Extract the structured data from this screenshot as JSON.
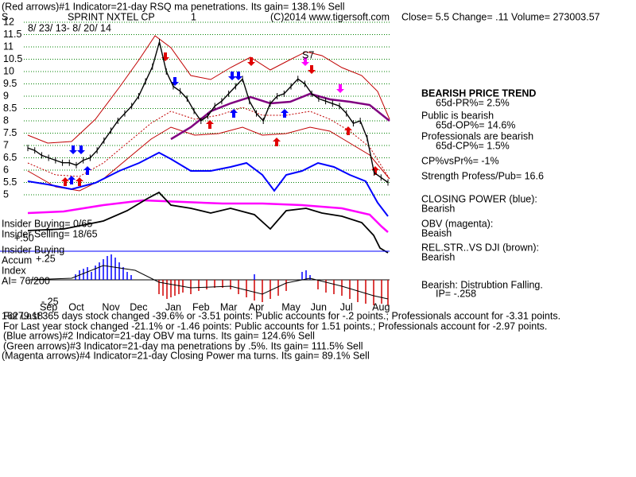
{
  "header": {
    "indicator1": "(Red arrows)#1 Indicator=21-day RSQ ma penetrations. Its gain= 138.1% Sell",
    "symbol": "S",
    "name": "SPRINT NXTEL CP",
    "period": "1",
    "copyright": "(C)2014 www.tigersoft.com",
    "quote": "Close=  5.5  Change= .11 Volume= 273003.57",
    "dates": "8/ 23/ 13-  8/ 20/ 14"
  },
  "chart_data": {
    "type": "line",
    "title": "SPRINT NXTEL CP",
    "annotation": "S7",
    "categories": [
      null,
      null,
      null,
      "Sep",
      null,
      null,
      null,
      "Oct",
      null,
      null,
      null,
      null,
      "Nov",
      null,
      null,
      null,
      "Dec",
      null,
      null,
      null,
      null,
      "Jan",
      null,
      null,
      null,
      "Feb",
      null,
      null,
      null,
      "Mar",
      null,
      null,
      null,
      "Apr",
      null,
      null,
      null,
      null,
      "May",
      null,
      null,
      null,
      "Jun",
      null,
      null,
      null,
      "Jul",
      null,
      null,
      null,
      null,
      "Aug",
      null
    ],
    "series": [
      {
        "name": "Price",
        "color": "#000000",
        "values": [
          6.9,
          6.8,
          6.6,
          6.5,
          6.4,
          6.3,
          6.3,
          6.2,
          6.4,
          6.5,
          6.8,
          7.2,
          7.6,
          8.0,
          8.3,
          8.6,
          9.0,
          9.6,
          10.2,
          11.2,
          10.0,
          9.4,
          9.2,
          8.9,
          8.4,
          8.0,
          8.2,
          8.6,
          8.8,
          9.1,
          9.4,
          9.7,
          8.8,
          8.3,
          8.0,
          8.7,
          9.0,
          9.1,
          9.4,
          9.7,
          9.5,
          9.1,
          8.9,
          8.8,
          8.7,
          8.6,
          8.3,
          7.9,
          8.0,
          7.3,
          5.9,
          5.7,
          5.5
        ]
      }
    ],
    "ylim": [
      5,
      12
    ],
    "yticks": [
      5,
      5.5,
      6,
      6.5,
      7,
      7.5,
      8,
      8.5,
      9,
      9.5,
      10,
      10.5,
      11,
      11.5,
      12
    ],
    "grid": true,
    "grid_color": "#008000"
  },
  "side": [
    "BEARISH PRICE TREND",
    "65d-PR%= 2.5%",
    "Public is bearish",
    "65d-OP%= 14.6%",
    "Professionals are bearish",
    "65d-CP%= 1.5%",
    "CP%vsPr%= -1%",
    "Strength Profess/Pub= 16.6",
    "CLOSING POWER (blue):",
    "Bearish",
    "OBV (magenta):",
    "Beaish",
    "REL.STR..VS DJI (brown):",
    "Bearish",
    "Bearish: Distrubtion Falling.",
    "IP= -.258"
  ],
  "left": [
    "Insider Buying= 0/65",
    "+.50",
    "Insider Selling= 18/65",
    "Insider Buying",
    "Accum",
    "+.25",
    "Index",
    "AI= 76/200",
    "-.25"
  ],
  "footer": [
    "16279.18",
    "For Last 365 days stock changed -39.6% or -3.51 points:  Public accounts for -.2 points.;  Professionals account for -3.31 points.",
    "For Last year stock changed -21.1% or -1.46 points:  Public accounts for  1.51 points.;  Professionals account for -2.97 points.",
    "(Blue arrows)#2 Indicator=21-day OBV ma turns. Its gain= 124.6% Sell",
    "(Green arrows)#3 Indicator=21-day ma penetrations by .5%. Its gain= 111.5% Sell",
    "(Magenta arrows)#4 Indicator=21-day Closing Power ma turns. Its gain= 89.1% Sell"
  ]
}
